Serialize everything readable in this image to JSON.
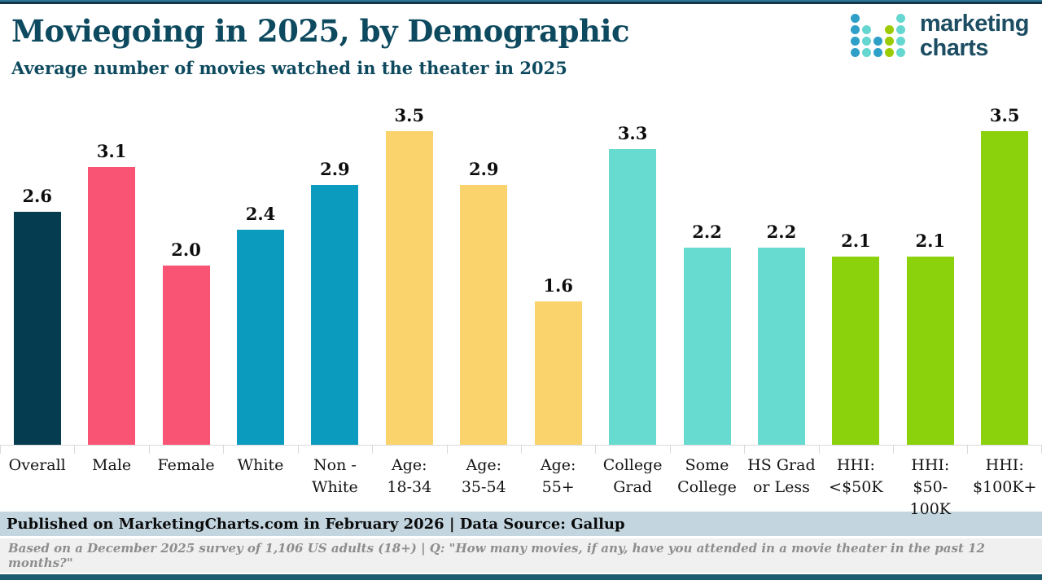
{
  "page": {
    "title": "Moviegoing in 2025, by Demographic",
    "subtitle": "Average number of movies watched in the theater in 2025"
  },
  "logo": {
    "line1": "marketing",
    "line2": "charts",
    "dot_colors": {
      "blue": "#2e9fc7",
      "teal": "#66d6d1",
      "green": "#9bcb00"
    },
    "dot_grid": [
      [
        "blue",
        "",
        "",
        "",
        "teal"
      ],
      [
        "blue",
        "teal",
        "",
        "green",
        "teal"
      ],
      [
        "blue",
        "teal",
        "blue",
        "green",
        "teal"
      ],
      [
        "blue",
        "teal",
        "blue",
        "green",
        "teal"
      ]
    ]
  },
  "chart_data": {
    "type": "bar",
    "title": "Moviegoing in 2025, by Demographic",
    "subtitle": "Average number of movies watched in the theater in 2025",
    "categories": [
      "Overall",
      "Male",
      "Female",
      "White",
      "Non -\nWhite",
      "Age:\n18-34",
      "Age:\n35-54",
      "Age:\n55+",
      "College\nGrad",
      "Some\nCollege",
      "HS Grad\nor Less",
      "HHI:\n<$50K",
      "HHI:\n$50-100K",
      "HHI:\n$100K+"
    ],
    "values": [
      2.6,
      3.1,
      2.0,
      2.4,
      2.9,
      3.5,
      2.9,
      1.6,
      3.3,
      2.2,
      2.2,
      2.1,
      2.1,
      3.5
    ],
    "value_labels": [
      "2.6",
      "3.1",
      "2.0",
      "2.4",
      "2.9",
      "3.5",
      "2.9",
      "1.6",
      "3.3",
      "2.2",
      "2.2",
      "2.1",
      "2.1",
      "3.5"
    ],
    "bar_colors": [
      "#053c50",
      "#fa5475",
      "#fa5475",
      "#0b9bbf",
      "#0b9bbf",
      "#fad36d",
      "#fad36d",
      "#fad36d",
      "#68dbd0",
      "#68dbd0",
      "#68dbd0",
      "#8bd10c",
      "#8bd10c",
      "#8bd10c"
    ],
    "group_colors": {
      "overall": "#053c50",
      "gender": "#fa5475",
      "race": "#0b9bbf",
      "age": "#fad36d",
      "education": "#68dbd0",
      "income": "#8bd10c"
    },
    "xlabel": "",
    "ylabel": "",
    "ylim": [
      0,
      3.5
    ],
    "grid": false,
    "legend": false,
    "baseline_color": "#d9d9d9"
  },
  "footer": {
    "published": "Published on MarketingCharts.com in February 2026 | Data Source: Gallup",
    "note": "Based on a December 2025 survey of 1,106 US adults (18+) | Q: \"How many movies, if any, have you attended in a movie theater in the past 12 months?\""
  },
  "colors": {
    "header_text": "#0e4a5f",
    "published_bg": "#c3d6e0",
    "footnote_bg": "#f0f0f0",
    "top_rule": "#14384b",
    "bottom_rule": "#1d5b71"
  }
}
